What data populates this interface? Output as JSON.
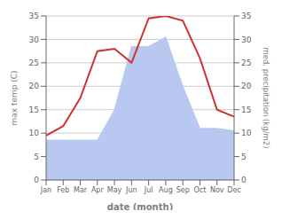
{
  "chart_data": {
    "type": "line",
    "xlabel": "date (month)",
    "ylabel": "max temp (C)",
    "y2label": "med. precipitation (kg/m2)",
    "categories": [
      "Jan",
      "Feb",
      "Mar",
      "Apr",
      "May",
      "Jun",
      "Jul",
      "Aug",
      "Sep",
      "Oct",
      "Nov",
      "Dec"
    ],
    "series": [
      {
        "type": "line",
        "color": "#cc3333",
        "values": [
          9.5,
          11.5,
          17.5,
          27.5,
          28.0,
          25.0,
          34.5,
          35.0,
          34.0,
          26.0,
          15.0,
          13.5
        ]
      },
      {
        "type": "area",
        "axis": "y2",
        "color": "#b8c8f0",
        "values": [
          8.5,
          8.5,
          8.5,
          8.5,
          15.0,
          28.5,
          28.5,
          30.5,
          20.0,
          11.0,
          11.0,
          10.5
        ]
      }
    ],
    "ylim": [
      0,
      35
    ],
    "yticks": [
      0,
      5,
      10,
      15,
      20,
      25,
      30,
      35
    ],
    "y2lim": [
      0,
      35
    ],
    "y2ticks": [
      0,
      5,
      10,
      15,
      20,
      25,
      30,
      35
    ],
    "grid": true
  }
}
